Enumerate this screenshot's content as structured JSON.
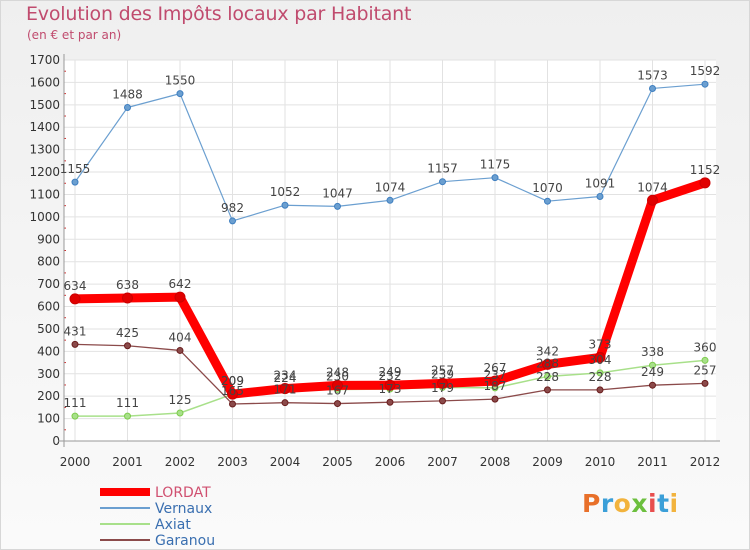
{
  "chart_title": "Evolution des Impôts locaux par Habitant",
  "chart_subtitle": "(en € et par an)",
  "logo": {
    "text": "Proxiti",
    "letters": [
      {
        "ch": "P",
        "color": "#e8702a"
      },
      {
        "ch": "r",
        "color": "#3b9fd8"
      },
      {
        "ch": "o",
        "color": "#f2b33d"
      },
      {
        "ch": "x",
        "color": "#6cbf3e"
      },
      {
        "ch": "i",
        "color": "#e84e4e"
      },
      {
        "ch": "t",
        "color": "#3b9fd8"
      },
      {
        "ch": "i",
        "color": "#f2b33d"
      }
    ]
  },
  "chart_data": {
    "type": "line",
    "title": "Evolution des Impôts locaux par Habitant",
    "subtitle": "(en € et par an)",
    "xlabel": "",
    "ylabel": "",
    "ylim": [
      0,
      1700
    ],
    "yticks": [
      0,
      100,
      200,
      300,
      400,
      500,
      600,
      700,
      800,
      900,
      1000,
      1100,
      1200,
      1300,
      1400,
      1500,
      1600,
      1700
    ],
    "grid": true,
    "legend_position": "bottom-left",
    "categories": [
      "2000",
      "2001",
      "2002",
      "2003",
      "2004",
      "2005",
      "2006",
      "2007",
      "2008",
      "2009",
      "2010",
      "2011",
      "2012"
    ],
    "series": [
      {
        "name": "Vernaux",
        "color": "#6b9fd0",
        "point_color": "#3f7fc0",
        "values": [
          1155,
          1488,
          1550,
          982,
          1052,
          1047,
          1074,
          1157,
          1175,
          1070,
          1091,
          1573,
          1592
        ]
      },
      {
        "name": "Axiat",
        "color": "#a8e08a",
        "point_color": "#7dcc4c",
        "values": [
          111,
          111,
          125,
          209,
          224,
          230,
          232,
          239,
          237,
          288,
          304,
          338,
          360
        ]
      },
      {
        "name": "Garanou",
        "color": "#8b4a4a",
        "point_color": "#6a1d1d",
        "values": [
          431,
          425,
          404,
          165,
          171,
          167,
          173,
          179,
          187,
          228,
          228,
          249,
          257
        ]
      },
      {
        "name": "LORDAT",
        "color": "#ff0000",
        "point_color": "#cc0000",
        "values": [
          634,
          638,
          642,
          209,
          234,
          248,
          249,
          257,
          267,
          342,
          373,
          1074,
          1152
        ]
      }
    ],
    "legend_order": [
      "LORDAT",
      "Vernaux",
      "Axiat",
      "Garanou"
    ]
  }
}
